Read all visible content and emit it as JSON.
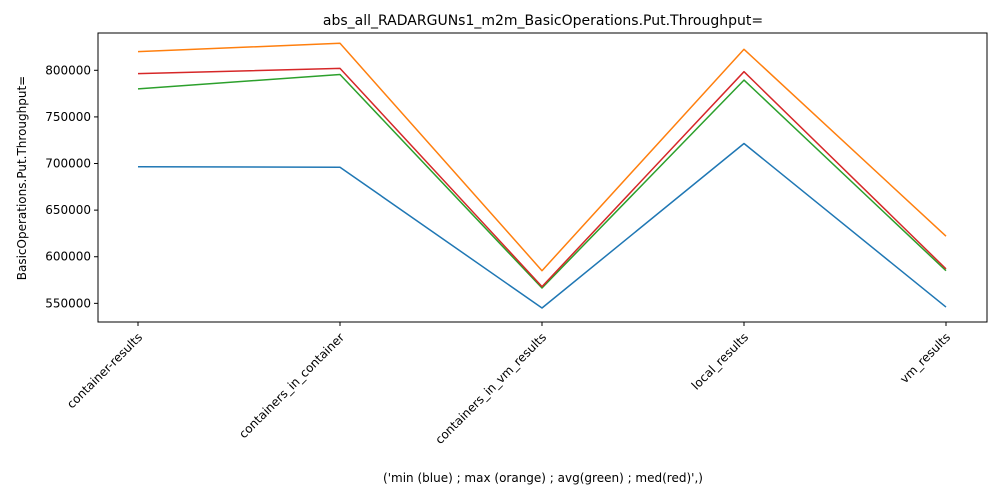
{
  "chart_data": {
    "type": "line",
    "title": "abs_all_RADARGUNs1_m2m_BasicOperations.Put.Throughput=",
    "xlabel": "('min (blue) ; max (orange) ; avg(green) ; med(red)',)",
    "ylabel": "BasicOperations.Put.Throughput=",
    "categories": [
      "container-results",
      "containers_in_container",
      "containers_in_vm_results",
      "local_results",
      "vm_results"
    ],
    "ylim": [
      530000,
      840000
    ],
    "yticks": [
      550000,
      600000,
      650000,
      700000,
      750000,
      800000
    ],
    "ytick_labels": [
      "550000",
      "600000",
      "650000",
      "700000",
      "750000",
      "800000"
    ],
    "grid": false,
    "series": [
      {
        "color": "#1f77b4",
        "values": [
          696500,
          696000,
          545000,
          721500,
          546000
        ]
      },
      {
        "color": "#ff7f0e",
        "values": [
          820000,
          829000,
          585000,
          822500,
          622000
        ]
      },
      {
        "color": "#2ca02c",
        "values": [
          780000,
          795500,
          566500,
          789500,
          585000
        ]
      },
      {
        "color": "#d62728",
        "values": [
          796500,
          802000,
          568000,
          798500,
          587000
        ]
      }
    ]
  }
}
